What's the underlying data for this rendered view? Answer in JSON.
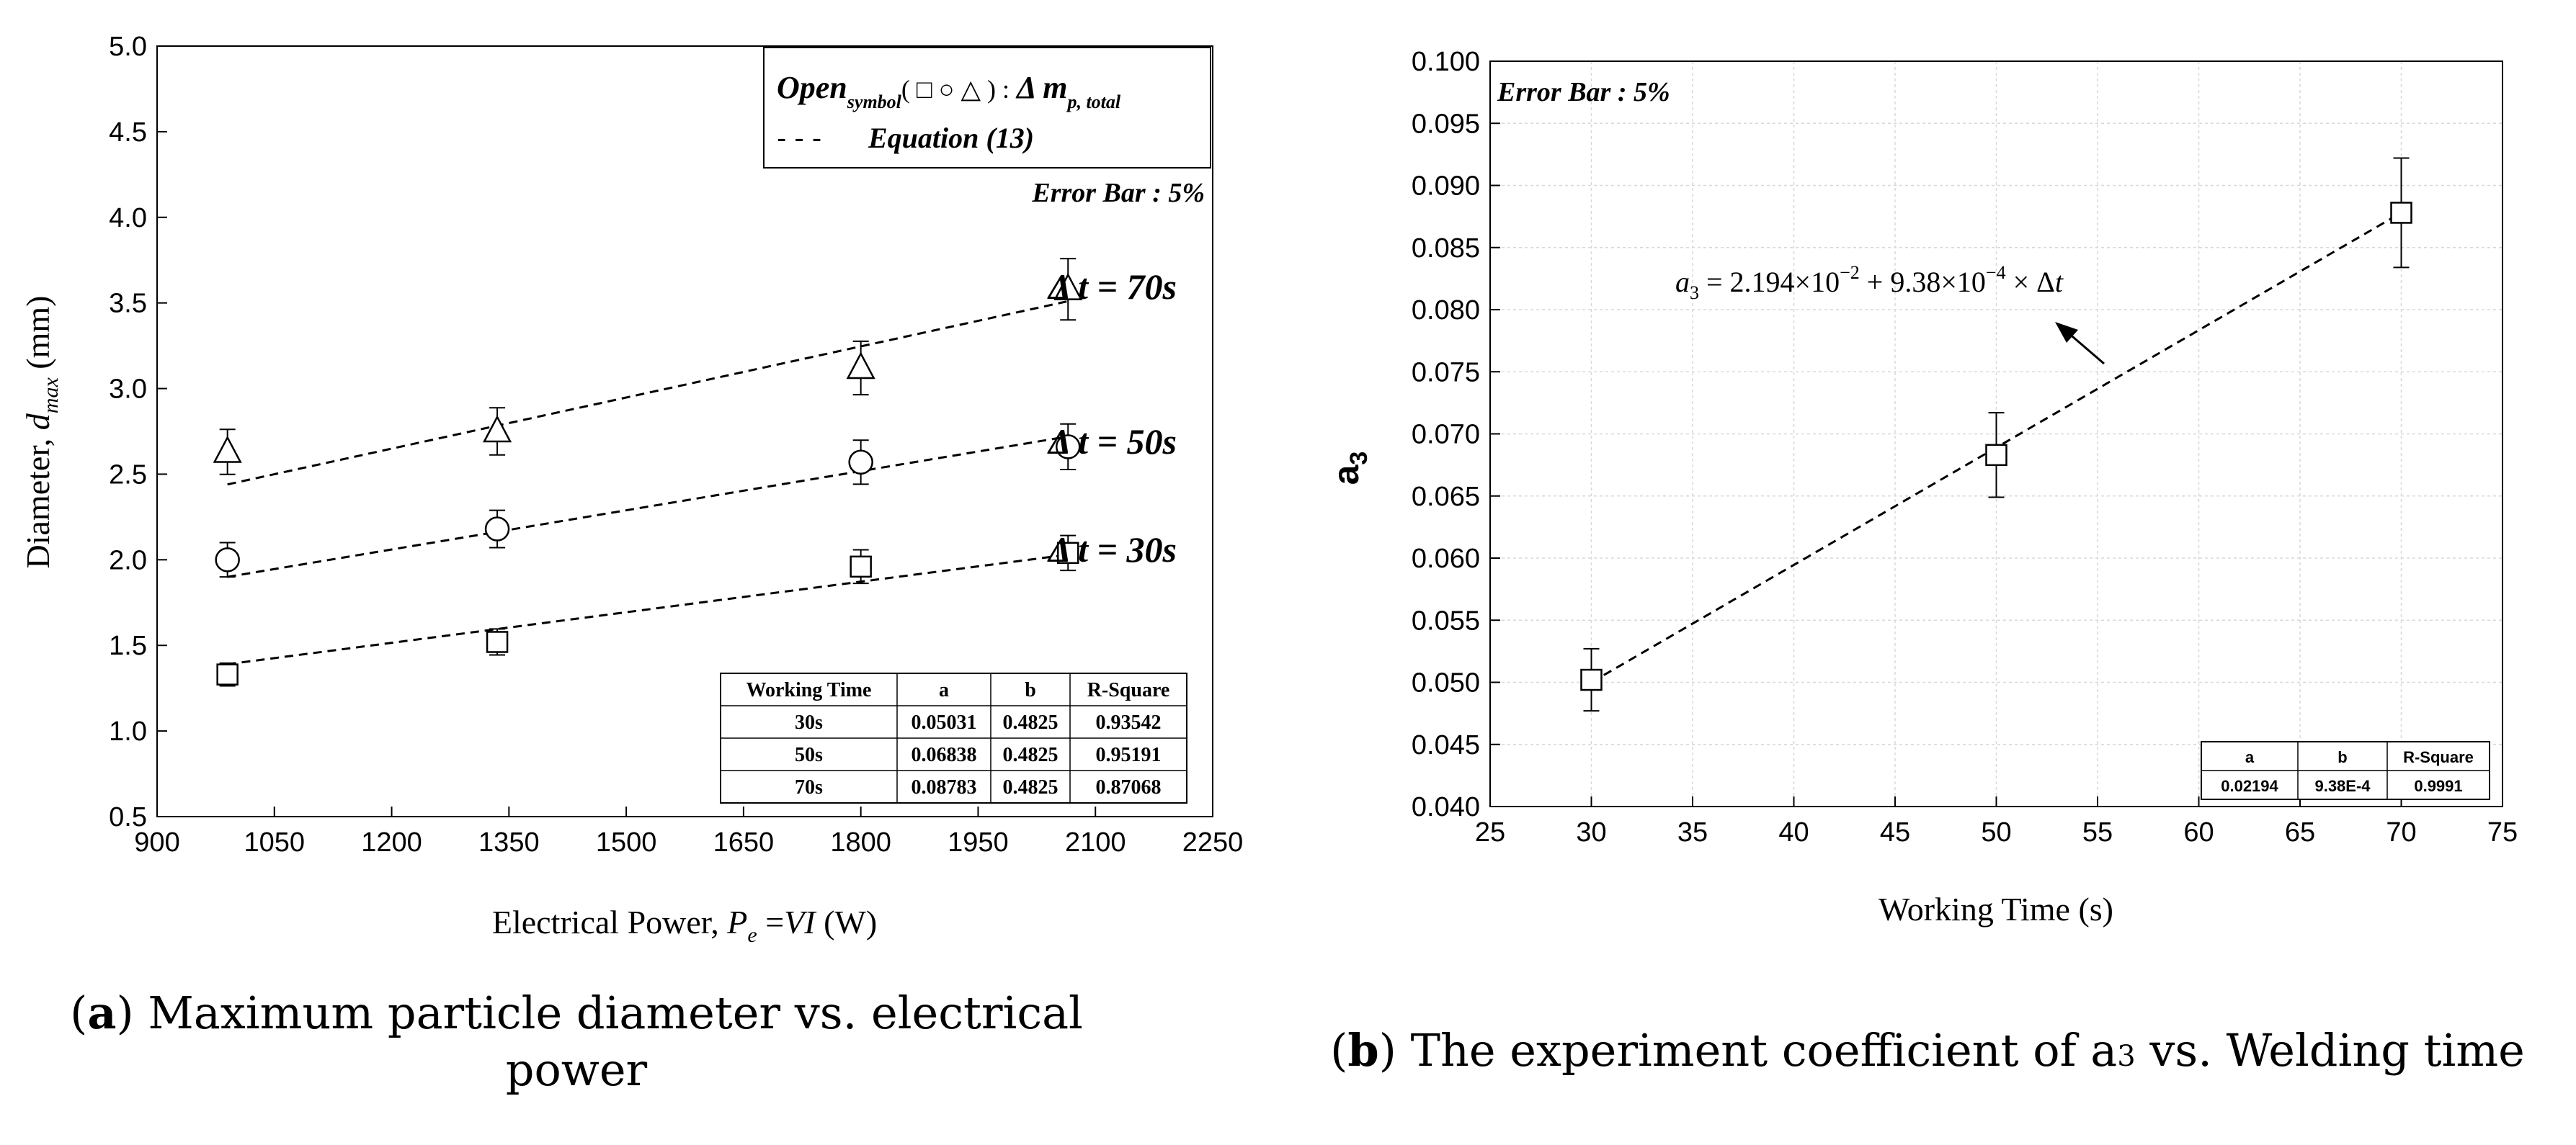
{
  "charts": [
    {
      "type": "scatter",
      "xlabel_prefix": "Electrical Power, ",
      "xlabel_var": "P",
      "xlabel_sub": "e",
      "xlabel_eq": " =",
      "xlabel_vi": "VI",
      "xlabel_unit": " (W)",
      "ylabel_prefix": "Diameter, ",
      "ylabel_var": "d",
      "ylabel_sub": "max",
      "ylabel_unit": " (mm)",
      "xlim": [
        900,
        2250
      ],
      "ylim": [
        0.5,
        5.0
      ],
      "xticks": [
        "900",
        "1050",
        "1200",
        "1350",
        "1500",
        "1650",
        "1800",
        "1950",
        "2100",
        "2250"
      ],
      "yticks": [
        "0.5",
        "1.0",
        "1.5",
        "2.0",
        "2.5",
        "3.0",
        "3.5",
        "4.0",
        "4.5",
        "5.0"
      ],
      "error_bar": "Error Bar : 5%",
      "legend": {
        "open": "Open",
        "symbol_sub": "symbol",
        "symbols": "( □ ○ △ ) :",
        "delta_m": "Δ m",
        "delta_sub": "p, total",
        "dash": "- - -",
        "equation": "Equation (13)"
      },
      "series": [
        {
          "name": "Δ t = 70s",
          "marker": "triangle",
          "x": [
            990,
            1335,
            1800,
            2065
          ],
          "y": [
            2.63,
            2.75,
            3.12,
            3.58
          ],
          "fit": [
            [
              990,
              2.44
            ],
            [
              2065,
              3.51
            ]
          ]
        },
        {
          "name": "Δ t = 50s",
          "marker": "circle",
          "x": [
            990,
            1335,
            1800,
            2065
          ],
          "y": [
            2.0,
            2.18,
            2.57,
            2.66
          ],
          "fit": [
            [
              990,
              1.9
            ],
            [
              2065,
              2.72
            ]
          ]
        },
        {
          "name": "Δ t = 30s",
          "marker": "square",
          "x": [
            990,
            1335,
            1800,
            2065
          ],
          "y": [
            1.33,
            1.52,
            1.96,
            2.04
          ],
          "fit": [
            [
              990,
              1.39
            ],
            [
              2065,
              2.03
            ]
          ]
        }
      ],
      "table": {
        "headers": [
          "Working Time",
          "a",
          "b",
          "R-Square"
        ],
        "rows": [
          [
            "30s",
            "0.05031",
            "0.4825",
            "0.93542"
          ],
          [
            "50s",
            "0.06838",
            "0.4825",
            "0.95191"
          ],
          [
            "70s",
            "0.08783",
            "0.4825",
            "0.87068"
          ]
        ]
      }
    },
    {
      "type": "scatter",
      "xlabel": "Working Time (s)",
      "ylabel": "a",
      "ylabel_sub": "3",
      "xlim": [
        25,
        75
      ],
      "ylim": [
        0.04,
        0.1
      ],
      "xticks": [
        "25",
        "30",
        "35",
        "40",
        "45",
        "50",
        "55",
        "60",
        "65",
        "70",
        "75"
      ],
      "yticks": [
        "0.040",
        "0.045",
        "0.050",
        "0.055",
        "0.060",
        "0.065",
        "0.070",
        "0.075",
        "0.080",
        "0.085",
        "0.090",
        "0.095",
        "0.100"
      ],
      "error_bar": "Error Bar : 5%",
      "series": [
        {
          "name": "a3",
          "marker": "square",
          "x": [
            30,
            50,
            70
          ],
          "y": [
            0.0502,
            0.0683,
            0.0878
          ],
          "err": [
            0.0025,
            0.0034,
            0.0044
          ],
          "fit": [
            [
              30,
              0.05
            ],
            [
              70,
              0.0878
            ]
          ]
        }
      ],
      "equation": "a3 = 2.194×10−2 + 9.38×10−4 × Δt",
      "equation_parts": {
        "a": "a",
        "sub3": "3",
        "eq1": " = 2.194×10",
        "exp1": "−2",
        "eq2": " + 9.38×10",
        "exp2": "−4",
        "eq3": " × Δ",
        "t": "t"
      },
      "table": {
        "headers": [
          "a",
          "b",
          "R-Square"
        ],
        "rows": [
          [
            "0.02194",
            "9.38E-4",
            "0.9991"
          ]
        ]
      }
    }
  ],
  "captions": {
    "a_label": "a",
    "a_line1": " Maximum particle diameter vs. electrical",
    "a_line2": "power",
    "b_label": "b",
    "b_text_1": " The experiment coefficient of a",
    "b_sub": "3",
    "b_text_2": " vs. Welding time"
  }
}
